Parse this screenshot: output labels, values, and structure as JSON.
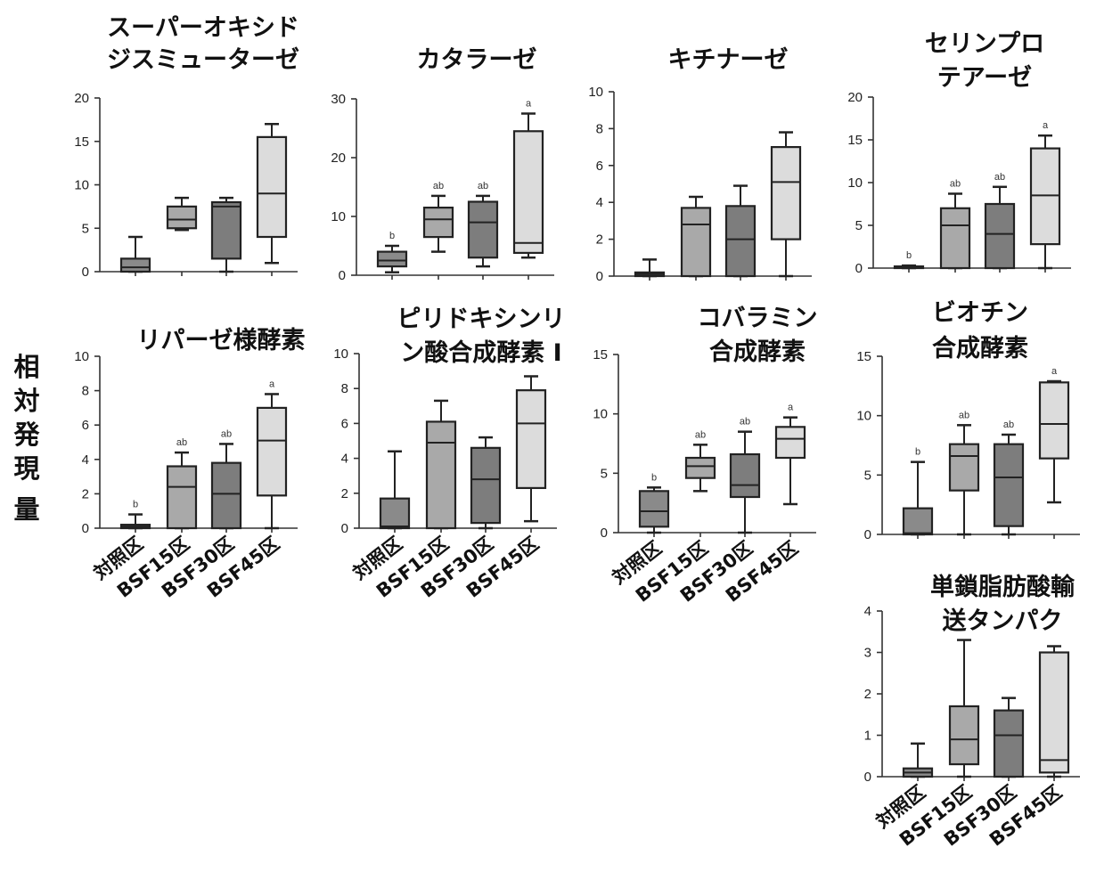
{
  "y_axis_label_chars": [
    "相",
    "対",
    "発",
    "現",
    "量"
  ],
  "colors": {
    "control": "#8a8a8a",
    "bsf15": "#a9a9a9",
    "bsf30": "#7d7d7d",
    "bsf45": "#dcdcdc",
    "line": "#222222"
  },
  "chart_data": [
    {
      "type": "box",
      "title_lines": [
        "スーパーオキシド",
        "ジスミューターゼ"
      ],
      "categories": [
        "対照区",
        "BSF15区",
        "BSF30区",
        "BSF45区"
      ],
      "ylim": [
        0,
        20
      ],
      "yticks": [
        0,
        5,
        10,
        15,
        20
      ],
      "boxes": [
        {
          "min": 0,
          "q1": 0,
          "median": 0.5,
          "q3": 1.5,
          "max": 4
        },
        {
          "min": 4.8,
          "q1": 5,
          "median": 6,
          "q3": 7.5,
          "max": 8.5
        },
        {
          "min": 0,
          "q1": 1.5,
          "median": 7.5,
          "q3": 8,
          "max": 8.5
        },
        {
          "min": 1,
          "q1": 4,
          "median": 9,
          "q3": 15.5,
          "max": 17
        }
      ],
      "sig": []
    },
    {
      "type": "box",
      "title_lines": [
        "カタラーゼ"
      ],
      "categories": [
        "対照区",
        "BSF15区",
        "BSF30区",
        "BSF45区"
      ],
      "ylim": [
        0,
        30
      ],
      "yticks": [
        0,
        10,
        20,
        30
      ],
      "boxes": [
        {
          "min": 0.5,
          "q1": 1.5,
          "median": 2.5,
          "q3": 4,
          "max": 5
        },
        {
          "min": 4,
          "q1": 6.5,
          "median": 9.5,
          "q3": 11.5,
          "max": 13.5
        },
        {
          "min": 1.5,
          "q1": 3,
          "median": 9,
          "q3": 12.5,
          "max": 13.5
        },
        {
          "min": 3,
          "q1": 3.8,
          "median": 5.5,
          "q3": 24.5,
          "max": 27.5
        }
      ],
      "sig": [
        "b",
        "ab",
        "ab",
        "a"
      ]
    },
    {
      "type": "box",
      "title_lines": [
        "キチナーゼ"
      ],
      "categories": [
        "対照区",
        "BSF15区",
        "BSF30区",
        "BSF45区"
      ],
      "ylim": [
        0,
        10
      ],
      "yticks": [
        0,
        2,
        4,
        6,
        8,
        10
      ],
      "boxes": [
        {
          "min": 0,
          "q1": 0,
          "median": 0.1,
          "q3": 0.2,
          "max": 0.9
        },
        {
          "min": 0,
          "q1": 0,
          "median": 2.8,
          "q3": 3.7,
          "max": 4.3
        },
        {
          "min": 0,
          "q1": 0,
          "median": 2,
          "q3": 3.8,
          "max": 4.9
        },
        {
          "min": 0,
          "q1": 2,
          "median": 5.1,
          "q3": 7,
          "max": 7.8
        }
      ],
      "sig": []
    },
    {
      "type": "box",
      "title_lines": [
        "セリンプロ",
        "テアーゼ"
      ],
      "categories": [
        "対照区",
        "BSF15区",
        "BSF30区",
        "BSF45区"
      ],
      "ylim": [
        0,
        20
      ],
      "yticks": [
        0,
        5,
        10,
        15,
        20
      ],
      "boxes": [
        {
          "min": 0,
          "q1": 0,
          "median": 0.1,
          "q3": 0.2,
          "max": 0.3
        },
        {
          "min": 0,
          "q1": 0,
          "median": 5,
          "q3": 7,
          "max": 8.7
        },
        {
          "min": 0,
          "q1": 0,
          "median": 4,
          "q3": 7.5,
          "max": 9.5
        },
        {
          "min": 0,
          "q1": 2.8,
          "median": 8.5,
          "q3": 14,
          "max": 15.5
        }
      ],
      "sig": [
        "b",
        "ab",
        "ab",
        "a"
      ]
    },
    {
      "type": "box",
      "title_lines": [
        "リパーゼ様酵素"
      ],
      "categories": [
        "対照区",
        "BSF15区",
        "BSF30区",
        "BSF45区"
      ],
      "ylim": [
        0,
        10
      ],
      "yticks": [
        0,
        2,
        4,
        6,
        8,
        10
      ],
      "boxes": [
        {
          "min": 0,
          "q1": 0,
          "median": 0.1,
          "q3": 0.2,
          "max": 0.8
        },
        {
          "min": 0,
          "q1": 0,
          "median": 2.4,
          "q3": 3.6,
          "max": 4.4
        },
        {
          "min": 0,
          "q1": 0,
          "median": 2,
          "q3": 3.8,
          "max": 4.9
        },
        {
          "min": 0,
          "q1": 1.9,
          "median": 5.1,
          "q3": 7,
          "max": 7.8
        }
      ],
      "sig": [
        "b",
        "ab",
        "ab",
        "a"
      ]
    },
    {
      "type": "box",
      "title_lines": [
        "ピリドキシンリ",
        "ン酸合成酵素 I"
      ],
      "categories": [
        "対照区",
        "BSF15区",
        "BSF30区",
        "BSF45区"
      ],
      "ylim": [
        0,
        10
      ],
      "yticks": [
        0,
        2,
        4,
        6,
        8,
        10
      ],
      "boxes": [
        {
          "min": 0,
          "q1": 0,
          "median": 0.1,
          "q3": 1.7,
          "max": 4.4
        },
        {
          "min": 0,
          "q1": 0,
          "median": 4.9,
          "q3": 6.1,
          "max": 7.3
        },
        {
          "min": 0,
          "q1": 0.3,
          "median": 2.8,
          "q3": 4.6,
          "max": 5.2
        },
        {
          "min": 0.4,
          "q1": 2.3,
          "median": 6,
          "q3": 7.9,
          "max": 8.7
        }
      ],
      "sig": []
    },
    {
      "type": "box",
      "title_lines": [
        "コバラミン",
        "合成酵素"
      ],
      "categories": [
        "対照区",
        "BSF15区",
        "BSF30区",
        "BSF45区"
      ],
      "ylim": [
        0,
        15
      ],
      "yticks": [
        0,
        5,
        10,
        15
      ],
      "boxes": [
        {
          "min": 0,
          "q1": 0.5,
          "median": 1.8,
          "q3": 3.5,
          "max": 3.8
        },
        {
          "min": 3.5,
          "q1": 4.6,
          "median": 5.6,
          "q3": 6.3,
          "max": 7.4
        },
        {
          "min": 0,
          "q1": 3,
          "median": 4,
          "q3": 6.6,
          "max": 8.5
        },
        {
          "min": 2.4,
          "q1": 6.3,
          "median": 7.9,
          "q3": 8.9,
          "max": 9.7
        }
      ],
      "sig": [
        "b",
        "ab",
        "ab",
        "a"
      ]
    },
    {
      "type": "box",
      "title_lines": [
        "ビオチン",
        "合成酵素"
      ],
      "categories": [
        "対照区",
        "BSF15区",
        "BSF30区",
        "BSF45区"
      ],
      "ylim": [
        0,
        15
      ],
      "yticks": [
        0,
        5,
        10,
        15
      ],
      "boxes": [
        {
          "min": 0,
          "q1": 0,
          "median": 0.1,
          "q3": 2.2,
          "max": 6.1
        },
        {
          "min": 0,
          "q1": 3.7,
          "median": 6.6,
          "q3": 7.6,
          "max": 9.2
        },
        {
          "min": 0,
          "q1": 0.7,
          "median": 4.8,
          "q3": 7.6,
          "max": 8.4
        },
        {
          "min": 2.7,
          "q1": 6.4,
          "median": 9.3,
          "q3": 12.8,
          "max": 12.9
        }
      ],
      "sig": [
        "b",
        "ab",
        "ab",
        "a"
      ]
    },
    {
      "type": "box",
      "title_lines": [
        "単鎖脂肪酸輸",
        "送タンパク"
      ],
      "categories": [
        "対照区",
        "BSF15区",
        "BSF30区",
        "BSF45区"
      ],
      "ylim": [
        0,
        4
      ],
      "yticks": [
        0,
        1,
        2,
        3,
        4
      ],
      "boxes": [
        {
          "min": 0,
          "q1": 0,
          "median": 0.1,
          "q3": 0.2,
          "max": 0.8
        },
        {
          "min": 0,
          "q1": 0.3,
          "median": 0.9,
          "q3": 1.7,
          "max": 3.3
        },
        {
          "min": 0,
          "q1": 0,
          "median": 1,
          "q3": 1.6,
          "max": 1.9
        },
        {
          "min": 0,
          "q1": 0.1,
          "median": 0.4,
          "q3": 3,
          "max": 3.15
        }
      ],
      "sig": []
    }
  ]
}
